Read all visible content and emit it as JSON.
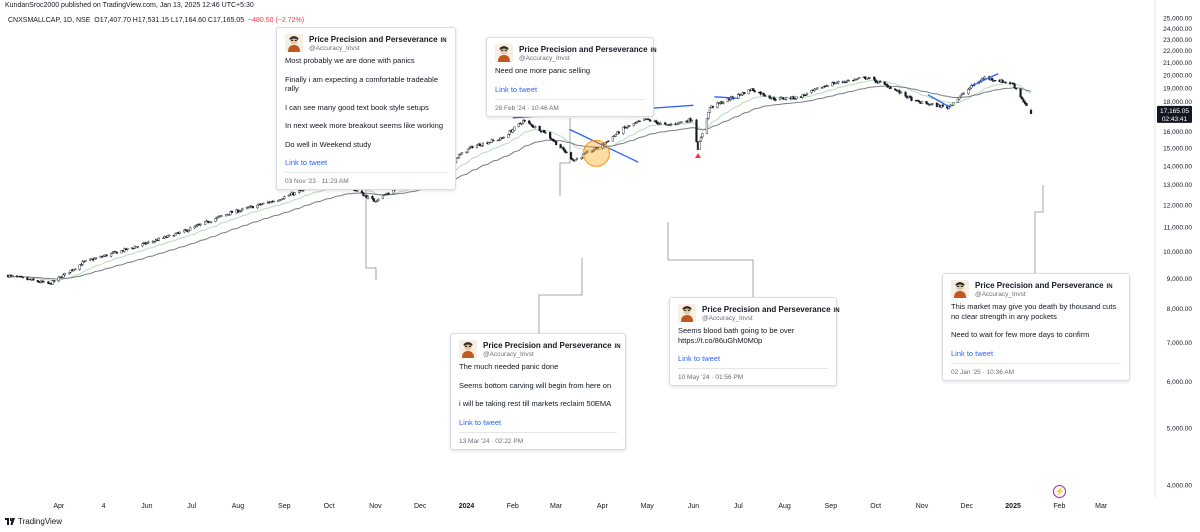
{
  "header": {
    "published_line": "KundanSroc2000 published on TradingView.com, Jan 13, 2025 12:46 UTC+5:30",
    "symbol": "CNXSMALLCAP, 1D, NSE",
    "ohlc": "O17,407.70  H17,531.15  L17,164.60  C17,165.05",
    "change": "−480.50 (−2.72%)"
  },
  "footer": {
    "brand": "TradingView"
  },
  "price_label": {
    "price": "17,165.05",
    "countdown": "02:43:41"
  },
  "colors": {
    "up": "#ffffff",
    "down": "#131722",
    "accent": "#2962ff",
    "sell_marker": "#f23645",
    "ema_fast": "#b8dcb8",
    "ema_slow": "#787b86",
    "highlight": "#ff9800"
  },
  "chart_data": {
    "type": "candlestick",
    "title": "",
    "symbol": "CNXSMALLCAP",
    "interval": "1D",
    "y_axis": {
      "scale": "log",
      "range": [
        3800,
        25600
      ],
      "ticks": [
        "25,000.00",
        "24,000.00",
        "23,000.00",
        "22,000.00",
        "21,000.00",
        "20,000.00",
        "19,000.00",
        "18,000.00",
        "16,000.00",
        "15,000.00",
        "14,000.00",
        "13,000.00",
        "12,000.00",
        "11,000.00",
        "10,000.00",
        "9,000.00",
        "8,000.00",
        "7,000.00",
        "6,000.00",
        "5,000.00",
        "4,000.00"
      ],
      "tick_values": [
        25000,
        24000,
        23000,
        22000,
        21000,
        20000,
        19000,
        18000,
        16000,
        15000,
        14000,
        13000,
        12000,
        11000,
        10000,
        9000,
        8000,
        7000,
        6000,
        5000,
        4000
      ]
    },
    "x_axis": {
      "range": [
        "2023-02-28",
        "2025-03-31"
      ],
      "labels": [
        {
          "text": "Apr",
          "date": "2023-04-03"
        },
        {
          "text": "4",
          "date": "2023-05-03"
        },
        {
          "text": "Jun",
          "date": "2023-06-01"
        },
        {
          "text": "Jul",
          "date": "2023-07-01"
        },
        {
          "text": "Aug",
          "date": "2023-08-01"
        },
        {
          "text": "Sep",
          "date": "2023-09-01"
        },
        {
          "text": "Oct",
          "date": "2023-10-01"
        },
        {
          "text": "Nov",
          "date": "2023-11-01"
        },
        {
          "text": "Dec",
          "date": "2023-12-01"
        },
        {
          "text": "2024",
          "date": "2024-01-01"
        },
        {
          "text": "Feb",
          "date": "2024-02-01"
        },
        {
          "text": "Mar",
          "date": "2024-03-01"
        },
        {
          "text": "Apr",
          "date": "2024-04-01"
        },
        {
          "text": "May",
          "date": "2024-05-01"
        },
        {
          "text": "Jun",
          "date": "2024-06-01"
        },
        {
          "text": "Jul",
          "date": "2024-07-01"
        },
        {
          "text": "Aug",
          "date": "2024-08-01"
        },
        {
          "text": "Sep",
          "date": "2024-09-01"
        },
        {
          "text": "Oct",
          "date": "2024-10-01"
        },
        {
          "text": "Nov",
          "date": "2024-11-01"
        },
        {
          "text": "Dec",
          "date": "2024-12-01"
        },
        {
          "text": "2025",
          "date": "2025-01-01"
        },
        {
          "text": "Feb",
          "date": "2025-02-01"
        },
        {
          "text": "Mar",
          "date": "2025-03-01"
        }
      ]
    },
    "price_path": [
      {
        "date": "2023-02-28",
        "close": 9100
      },
      {
        "date": "2023-03-28",
        "close": 8800
      },
      {
        "date": "2023-04-20",
        "close": 9600
      },
      {
        "date": "2023-05-25",
        "close": 10200
      },
      {
        "date": "2023-06-25",
        "close": 10800
      },
      {
        "date": "2023-07-25",
        "close": 11600
      },
      {
        "date": "2023-08-25",
        "close": 12200
      },
      {
        "date": "2023-09-20",
        "close": 12900
      },
      {
        "date": "2023-10-10",
        "close": 13100
      },
      {
        "date": "2023-10-31",
        "close": 12200
      },
      {
        "date": "2023-11-15",
        "close": 12800
      },
      {
        "date": "2023-12-10",
        "close": 13600
      },
      {
        "date": "2024-01-05",
        "close": 15100
      },
      {
        "date": "2024-01-25",
        "close": 15600
      },
      {
        "date": "2024-02-08",
        "close": 16700
      },
      {
        "date": "2024-02-22",
        "close": 16000
      },
      {
        "date": "2024-03-13",
        "close": 14300
      },
      {
        "date": "2024-04-01",
        "close": 15200
      },
      {
        "date": "2024-04-15",
        "close": 16200
      },
      {
        "date": "2024-04-30",
        "close": 16800
      },
      {
        "date": "2024-05-14",
        "close": 16400
      },
      {
        "date": "2024-05-31",
        "close": 16800
      },
      {
        "date": "2024-06-04",
        "close": 15000
      },
      {
        "date": "2024-06-12",
        "close": 17600
      },
      {
        "date": "2024-07-10",
        "close": 18900
      },
      {
        "date": "2024-07-25",
        "close": 18200
      },
      {
        "date": "2024-08-10",
        "close": 18300
      },
      {
        "date": "2024-08-31",
        "close": 19300
      },
      {
        "date": "2024-09-25",
        "close": 19800
      },
      {
        "date": "2024-10-10",
        "close": 19100
      },
      {
        "date": "2024-10-28",
        "close": 18000
      },
      {
        "date": "2024-11-18",
        "close": 17600
      },
      {
        "date": "2024-12-05",
        "close": 19200
      },
      {
        "date": "2024-12-13",
        "close": 19800
      },
      {
        "date": "2025-01-01",
        "close": 19300
      },
      {
        "date": "2025-01-13",
        "close": 17165
      }
    ],
    "last": {
      "open": 17407.7,
      "high": 17531.15,
      "low": 17164.6,
      "close": 17165.05,
      "change": -480.5,
      "change_pct": -2.72
    },
    "trendlines": [
      {
        "from": {
          "date": "2024-02-01",
          "value": 16900
        },
        "to": {
          "date": "2024-06-01",
          "value": 17750
        }
      },
      {
        "from": {
          "date": "2024-03-10",
          "value": 16150
        },
        "to": {
          "date": "2024-04-25",
          "value": 14200
        }
      },
      {
        "from": {
          "date": "2024-06-15",
          "value": 18350
        },
        "to": {
          "date": "2024-07-01",
          "value": 18250
        }
      },
      {
        "from": {
          "date": "2024-12-05",
          "value": 19200
        },
        "to": {
          "date": "2024-12-22",
          "value": 20100
        }
      },
      {
        "from": {
          "date": "2024-11-05",
          "value": 18500
        },
        "to": {
          "date": "2024-11-20",
          "value": 17600
        }
      }
    ],
    "highlight": {
      "date": "2024-03-28",
      "value": 14700
    }
  },
  "tweets": [
    {
      "name": "Price Precision and Perseverance",
      "loc": "IN",
      "handle": "@Accuracy_Invst",
      "lines": [
        "Most probably we are done with panics",
        "Finally i am expecting a comfortable tradeable rally",
        "I can see many good text book style setups",
        "In next week more breakout seems like working",
        "Do well in Weekend study"
      ],
      "link": "Link to tweet",
      "date": "03 Nov '23 · 11:23 AM"
    },
    {
      "name": "Price Precision and Perseverance",
      "loc": "IN",
      "handle": "@Accuracy_Invst",
      "lines": [
        "Need one more panic selling"
      ],
      "link": "Link to tweet",
      "date": "28 Feb '24 · 10:46 AM"
    },
    {
      "name": "Price Precision and Perseverance",
      "loc": "IN",
      "handle": "@Accuracy_Invst",
      "lines": [
        "The much needed panic done",
        "Seems bottom carving will begin from here on",
        "i will be taking rest till markets reclaim 50EMA"
      ],
      "link": "Link to tweet",
      "date": "13 Mar '24 · 02:22 PM"
    },
    {
      "name": "Price Precision and Perseverance",
      "loc": "IN",
      "handle": "@Accuracy_Invst",
      "lines": [
        "Seems blood bath going to be over https://t.co/86uGhM0M0p"
      ],
      "link": "Link to tweet",
      "date": "10 May '24 · 01:56 PM"
    },
    {
      "name": "Price Precision and Perseverance",
      "loc": "IN",
      "handle": "@Accuracy_Invst",
      "lines": [
        "This market may give you death by thousand cuts no clear strength in any pockets",
        "Need to wait for few more days to confirm"
      ],
      "link": "Link to tweet",
      "date": "02 Jan '25 · 10:36 AM"
    }
  ]
}
